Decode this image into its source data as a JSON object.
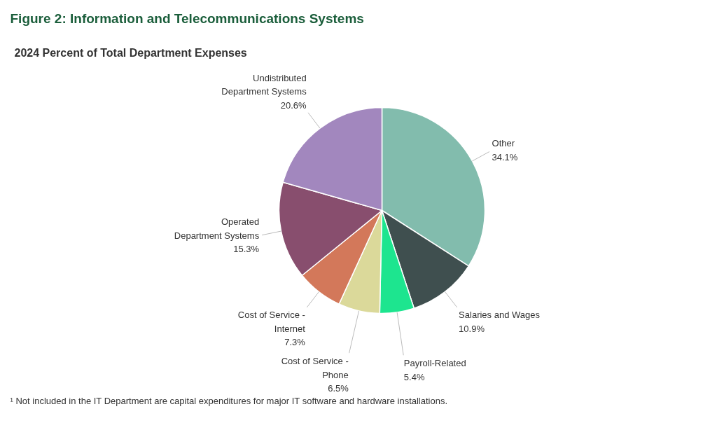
{
  "chart_data": {
    "type": "pie",
    "title": "Figure 2: Information and Telecommunications Systems",
    "subtitle": "2024 Percent of Total Department Expenses",
    "categories": [
      "Other",
      "Salaries and Wages",
      "Payroll-Related",
      "Cost of Service - Phone",
      "Cost of Service - Internet",
      "Operated Department Systems",
      "Undistributed Department Systems"
    ],
    "values": [
      34.1,
      10.9,
      5.4,
      6.5,
      7.3,
      15.3,
      20.6
    ],
    "colors": [
      "#82bcad",
      "#3f4f4f",
      "#1de58f",
      "#dbd99a",
      "#d3785a",
      "#884e6e",
      "#a287be"
    ],
    "value_labels": [
      "34.1%",
      "10.9%",
      "5.4%",
      "6.5%",
      "7.3%",
      "15.3%",
      "20.6%"
    ],
    "annotations": [
      "¹ Not included in the IT Department are capital expenditures for major IT software and hardware installations."
    ]
  }
}
